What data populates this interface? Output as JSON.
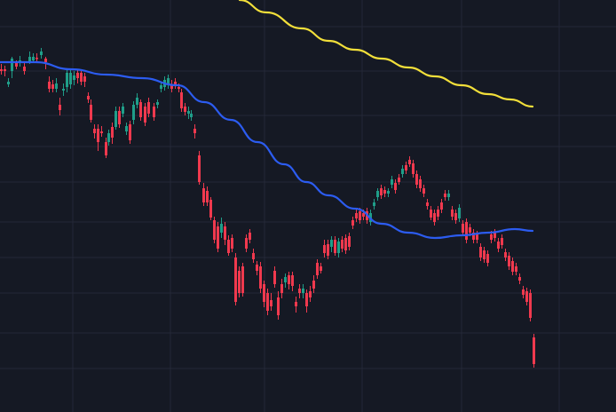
{
  "colors": {
    "background": "#151924",
    "grid": "#232837",
    "up": "#1f9e89",
    "down": "#f0394e",
    "ma_fast": "#2c5cf0",
    "ma_slow": "#f2df3a"
  },
  "chart_data": {
    "type": "candlestick",
    "title": "",
    "xlabel": "",
    "ylabel": "",
    "grid": true,
    "legend": "none",
    "ylim": [
      0,
      464
    ],
    "candles": [
      [
        0,
        78,
        80,
        72,
        84
      ],
      [
        4,
        78,
        80,
        74,
        86
      ],
      [
        8,
        95,
        92,
        88,
        98
      ],
      [
        12,
        80,
        66,
        64,
        88
      ],
      [
        17,
        71,
        75,
        68,
        78
      ],
      [
        21,
        70,
        68,
        63,
        75
      ],
      [
        26,
        75,
        80,
        70,
        84
      ],
      [
        32,
        70,
        64,
        58,
        72
      ],
      [
        36,
        68,
        64,
        60,
        70
      ],
      [
        40,
        65,
        66,
        60,
        70
      ],
      [
        45,
        62,
        58,
        54,
        66
      ],
      [
        50,
        66,
        70,
        64,
        78
      ],
      [
        54,
        92,
        100,
        86,
        104
      ],
      [
        58,
        95,
        100,
        90,
        104
      ],
      [
        62,
        100,
        94,
        88,
        104
      ],
      [
        66,
        118,
        124,
        110,
        130
      ],
      [
        70,
        102,
        100,
        94,
        108
      ],
      [
        74,
        98,
        82,
        78,
        104
      ],
      [
        78,
        95,
        82,
        78,
        100
      ],
      [
        82,
        90,
        85,
        80,
        96
      ],
      [
        86,
        82,
        88,
        78,
        94
      ],
      [
        90,
        82,
        92,
        80,
        96
      ],
      [
        94,
        86,
        92,
        82,
        98
      ],
      [
        98,
        108,
        112,
        104,
        116
      ],
      [
        101,
        118,
        135,
        112,
        138
      ],
      [
        105,
        145,
        150,
        140,
        156
      ],
      [
        109,
        145,
        160,
        140,
        170
      ],
      [
        113,
        148,
        150,
        142,
        154
      ],
      [
        118,
        160,
        175,
        155,
        178
      ],
      [
        121,
        160,
        150,
        146,
        164
      ],
      [
        125,
        143,
        155,
        138,
        162
      ],
      [
        129,
        143,
        125,
        120,
        146
      ],
      [
        133,
        125,
        140,
        120,
        144
      ],
      [
        137,
        128,
        120,
        116,
        132
      ],
      [
        141,
        148,
        142,
        138,
        152
      ],
      [
        145,
        140,
        158,
        136,
        162
      ],
      [
        149,
        135,
        118,
        114,
        140
      ],
      [
        153,
        118,
        110,
        105,
        122
      ],
      [
        157,
        115,
        132,
        112,
        136
      ],
      [
        162,
        120,
        138,
        116,
        142
      ],
      [
        166,
        115,
        128,
        110,
        132
      ],
      [
        172,
        120,
        132,
        116,
        136
      ],
      [
        176,
        118,
        115,
        112,
        122
      ],
      [
        180,
        100,
        96,
        92,
        104
      ],
      [
        184,
        98,
        90,
        86,
        102
      ],
      [
        188,
        95,
        88,
        84,
        100
      ],
      [
        192,
        95,
        100,
        90,
        104
      ],
      [
        196,
        92,
        95,
        88,
        100
      ],
      [
        200,
        98,
        100,
        94,
        104
      ],
      [
        203,
        104,
        122,
        100,
        126
      ],
      [
        207,
        120,
        126,
        116,
        130
      ],
      [
        211,
        128,
        125,
        120,
        134
      ],
      [
        214,
        132,
        128,
        124,
        136
      ],
      [
        218,
        145,
        150,
        140,
        156
      ],
      [
        223,
        175,
        205,
        170,
        208
      ],
      [
        228,
        212,
        228,
        206,
        232
      ],
      [
        232,
        215,
        228,
        210,
        232
      ],
      [
        236,
        225,
        245,
        222,
        248
      ],
      [
        240,
        248,
        270,
        244,
        274
      ],
      [
        244,
        255,
        280,
        250,
        284
      ],
      [
        248,
        262,
        252,
        245,
        268
      ],
      [
        252,
        255,
        270,
        250,
        276
      ],
      [
        256,
        270,
        285,
        265,
        288
      ],
      [
        260,
        268,
        280,
        264,
        284
      ],
      [
        264,
        290,
        340,
        285,
        344
      ],
      [
        268,
        305,
        330,
        300,
        335
      ],
      [
        272,
        300,
        330,
        296,
        334
      ],
      [
        276,
        268,
        280,
        264,
        284
      ],
      [
        280,
        262,
        270,
        258,
        274
      ],
      [
        284,
        285,
        292,
        280,
        296
      ],
      [
        288,
        298,
        305,
        294,
        310
      ],
      [
        292,
        300,
        325,
        295,
        330
      ],
      [
        296,
        320,
        340,
        316,
        346
      ],
      [
        300,
        330,
        350,
        325,
        355
      ],
      [
        304,
        338,
        345,
        330,
        350
      ],
      [
        308,
        305,
        320,
        300,
        324
      ],
      [
        312,
        335,
        355,
        328,
        360
      ],
      [
        316,
        320,
        330,
        314,
        336
      ],
      [
        320,
        318,
        312,
        308,
        324
      ],
      [
        324,
        310,
        320,
        306,
        326
      ],
      [
        328,
        310,
        322,
        306,
        328
      ],
      [
        332,
        340,
        345,
        334,
        352
      ],
      [
        336,
        325,
        330,
        320,
        336
      ],
      [
        340,
        330,
        325,
        320,
        336
      ],
      [
        344,
        330,
        345,
        326,
        352
      ],
      [
        348,
        328,
        335,
        322,
        340
      ],
      [
        352,
        316,
        325,
        310,
        330
      ],
      [
        356,
        296,
        310,
        292,
        314
      ],
      [
        360,
        300,
        305,
        296,
        308
      ],
      [
        364,
        276,
        285,
        270,
        290
      ],
      [
        368,
        275,
        288,
        270,
        292
      ],
      [
        372,
        278,
        270,
        266,
        284
      ],
      [
        376,
        270,
        285,
        266,
        288
      ],
      [
        380,
        285,
        272,
        268,
        290
      ],
      [
        384,
        270,
        280,
        266,
        284
      ],
      [
        388,
        268,
        282,
        264,
        286
      ],
      [
        392,
        266,
        278,
        262,
        282
      ],
      [
        396,
        248,
        254,
        244,
        258
      ],
      [
        400,
        240,
        246,
        236,
        250
      ],
      [
        404,
        238,
        248,
        234,
        252
      ],
      [
        408,
        240,
        244,
        236,
        248
      ],
      [
        412,
        238,
        248,
        234,
        252
      ],
      [
        416,
        250,
        240,
        236,
        254
      ],
      [
        420,
        232,
        228,
        224,
        236
      ],
      [
        424,
        222,
        215,
        212,
        226
      ],
      [
        428,
        212,
        220,
        208,
        224
      ],
      [
        432,
        214,
        218,
        210,
        222
      ],
      [
        436,
        218,
        215,
        212,
        222
      ],
      [
        440,
        208,
        202,
        198,
        212
      ],
      [
        444,
        206,
        214,
        202,
        218
      ],
      [
        448,
        200,
        205,
        196,
        208
      ],
      [
        452,
        196,
        190,
        186,
        200
      ],
      [
        456,
        186,
        192,
        182,
        196
      ],
      [
        460,
        180,
        185,
        176,
        188
      ],
      [
        464,
        184,
        196,
        180,
        200
      ],
      [
        468,
        196,
        208,
        192,
        212
      ],
      [
        472,
        202,
        212,
        198,
        216
      ],
      [
        476,
        212,
        218,
        208,
        222
      ],
      [
        480,
        228,
        232,
        224,
        236
      ],
      [
        484,
        236,
        245,
        232,
        248
      ],
      [
        488,
        240,
        250,
        236,
        254
      ],
      [
        492,
        236,
        244,
        232,
        248
      ],
      [
        496,
        228,
        236,
        224,
        240
      ],
      [
        500,
        218,
        222,
        214,
        226
      ],
      [
        504,
        222,
        218,
        214,
        226
      ],
      [
        508,
        236,
        244,
        232,
        248
      ],
      [
        512,
        240,
        248,
        236,
        252
      ],
      [
        516,
        246,
        234,
        230,
        250
      ],
      [
        520,
        252,
        262,
        248,
        266
      ],
      [
        524,
        250,
        270,
        246,
        274
      ],
      [
        528,
        256,
        262,
        252,
        266
      ],
      [
        532,
        262,
        270,
        258,
        274
      ],
      [
        536,
        264,
        270,
        260,
        274
      ],
      [
        540,
        278,
        290,
        274,
        294
      ],
      [
        544,
        282,
        292,
        278,
        296
      ],
      [
        548,
        286,
        296,
        282,
        300
      ],
      [
        552,
        264,
        270,
        260,
        274
      ],
      [
        556,
        262,
        268,
        258,
        272
      ],
      [
        560,
        272,
        280,
        268,
        284
      ],
      [
        564,
        268,
        276,
        264,
        280
      ],
      [
        568,
        284,
        290,
        280,
        294
      ],
      [
        572,
        288,
        300,
        284,
        304
      ],
      [
        576,
        294,
        306,
        290,
        310
      ],
      [
        580,
        300,
        306,
        296,
        310
      ],
      [
        584,
        312,
        316,
        308,
        320
      ],
      [
        588,
        326,
        332,
        322,
        336
      ],
      [
        592,
        328,
        340,
        324,
        344
      ],
      [
        596,
        330,
        358,
        326,
        362
      ],
      [
        600,
        380,
        410,
        376,
        414
      ]
    ],
    "ma_fast": [
      [
        0,
        70
      ],
      [
        40,
        70
      ],
      [
        80,
        78
      ],
      [
        120,
        84
      ],
      [
        160,
        88
      ],
      [
        200,
        96
      ],
      [
        230,
        115
      ],
      [
        260,
        135
      ],
      [
        290,
        160
      ],
      [
        320,
        185
      ],
      [
        345,
        205
      ],
      [
        370,
        220
      ],
      [
        400,
        235
      ],
      [
        430,
        252
      ],
      [
        460,
        262
      ],
      [
        490,
        268
      ],
      [
        520,
        265
      ],
      [
        550,
        262
      ],
      [
        580,
        258
      ],
      [
        600,
        260
      ]
    ],
    "ma_slow": [
      [
        270,
        0
      ],
      [
        300,
        14
      ],
      [
        340,
        32
      ],
      [
        370,
        46
      ],
      [
        400,
        56
      ],
      [
        430,
        66
      ],
      [
        460,
        76
      ],
      [
        490,
        86
      ],
      [
        520,
        96
      ],
      [
        550,
        106
      ],
      [
        575,
        112
      ],
      [
        600,
        120
      ]
    ]
  }
}
